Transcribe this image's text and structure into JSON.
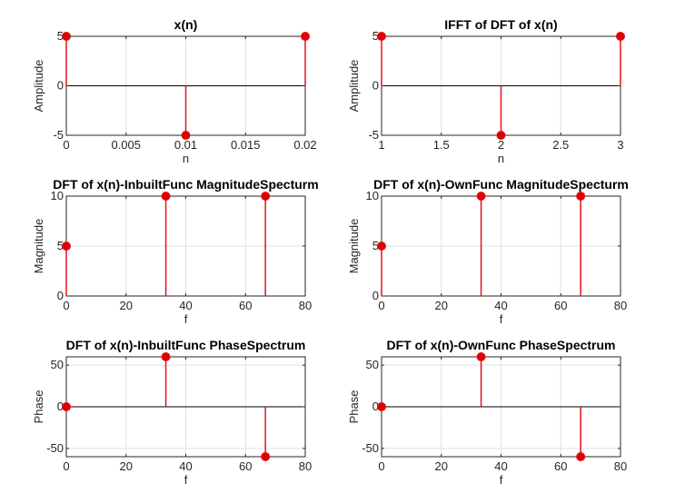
{
  "figure_title": "",
  "colors": {
    "stem": "#e8101a",
    "marker": "#dd0000",
    "grid": "#e1e1e1",
    "axis": "#262626",
    "zero_line": "#000000"
  },
  "chart_data": [
    {
      "type": "stem",
      "title": "x(n)",
      "xlabel": "n",
      "ylabel": "Amplitude",
      "xlim": [
        0,
        0.02
      ],
      "ylim": [
        -5,
        5
      ],
      "xticks": [
        0,
        0.005,
        0.01,
        0.015,
        0.02
      ],
      "xtick_labels": [
        "0",
        "0.005",
        "0.01",
        "0.015",
        "0.02"
      ],
      "yticks": [
        -5,
        0,
        5
      ],
      "ytick_labels": [
        "-5",
        "0",
        "5"
      ],
      "grid": true,
      "x": [
        0,
        0.01,
        0.02
      ],
      "y": [
        5,
        -5,
        5
      ]
    },
    {
      "type": "stem",
      "title": "IFFT of DFT of x(n)",
      "xlabel": "n",
      "ylabel": "Amplitude",
      "xlim": [
        1,
        3
      ],
      "ylim": [
        -5,
        5
      ],
      "xticks": [
        1,
        1.5,
        2,
        2.5,
        3
      ],
      "xtick_labels": [
        "1",
        "1.5",
        "2",
        "2.5",
        "3"
      ],
      "yticks": [
        -5,
        0,
        5
      ],
      "ytick_labels": [
        "-5",
        "0",
        "5"
      ],
      "grid": true,
      "x": [
        1,
        2,
        3
      ],
      "y": [
        5,
        -5,
        5
      ]
    },
    {
      "type": "stem",
      "title": "DFT of x(n)-InbuiltFunc MagnitudeSpecturm",
      "xlabel": "f",
      "ylabel": "Magnitude",
      "xlim": [
        0,
        80
      ],
      "ylim": [
        0,
        10
      ],
      "xticks": [
        0,
        20,
        40,
        60,
        80
      ],
      "xtick_labels": [
        "0",
        "20",
        "40",
        "60",
        "80"
      ],
      "yticks": [
        0,
        5,
        10
      ],
      "ytick_labels": [
        "0",
        "5",
        "10"
      ],
      "grid": true,
      "x": [
        0,
        33.33,
        66.67
      ],
      "y": [
        5,
        10,
        10
      ]
    },
    {
      "type": "stem",
      "title": "DFT of x(n)-OwnFunc MagnitudeSpecturm",
      "xlabel": "f",
      "ylabel": "Magnitude",
      "xlim": [
        0,
        80
      ],
      "ylim": [
        0,
        10
      ],
      "xticks": [
        0,
        20,
        40,
        60,
        80
      ],
      "xtick_labels": [
        "0",
        "20",
        "40",
        "60",
        "80"
      ],
      "yticks": [
        0,
        5,
        10
      ],
      "ytick_labels": [
        "0",
        "5",
        "10"
      ],
      "grid": true,
      "x": [
        0,
        33.33,
        66.67
      ],
      "y": [
        5,
        10,
        10
      ]
    },
    {
      "type": "stem",
      "title": "DFT of x(n)-InbuiltFunc PhaseSpectrum",
      "xlabel": "f",
      "ylabel": "Phase",
      "xlim": [
        0,
        80
      ],
      "ylim": [
        -60,
        60
      ],
      "xticks": [
        0,
        20,
        40,
        60,
        80
      ],
      "xtick_labels": [
        "0",
        "20",
        "40",
        "60",
        "80"
      ],
      "yticks": [
        -50,
        0,
        50
      ],
      "ytick_labels": [
        "-50",
        "0",
        "50"
      ],
      "grid": true,
      "x": [
        0,
        33.33,
        66.67
      ],
      "y": [
        0,
        60,
        -60
      ]
    },
    {
      "type": "stem",
      "title": "DFT of x(n)-OwnFunc PhaseSpectrum",
      "xlabel": "f",
      "ylabel": "Phase",
      "xlim": [
        0,
        80
      ],
      "ylim": [
        -60,
        60
      ],
      "xticks": [
        0,
        20,
        40,
        60,
        80
      ],
      "xtick_labels": [
        "0",
        "20",
        "40",
        "60",
        "80"
      ],
      "yticks": [
        -50,
        0,
        50
      ],
      "ytick_labels": [
        "-50",
        "0",
        "50"
      ],
      "grid": true,
      "x": [
        0,
        33.33,
        66.67
      ],
      "y": [
        0,
        60,
        -60
      ]
    }
  ]
}
